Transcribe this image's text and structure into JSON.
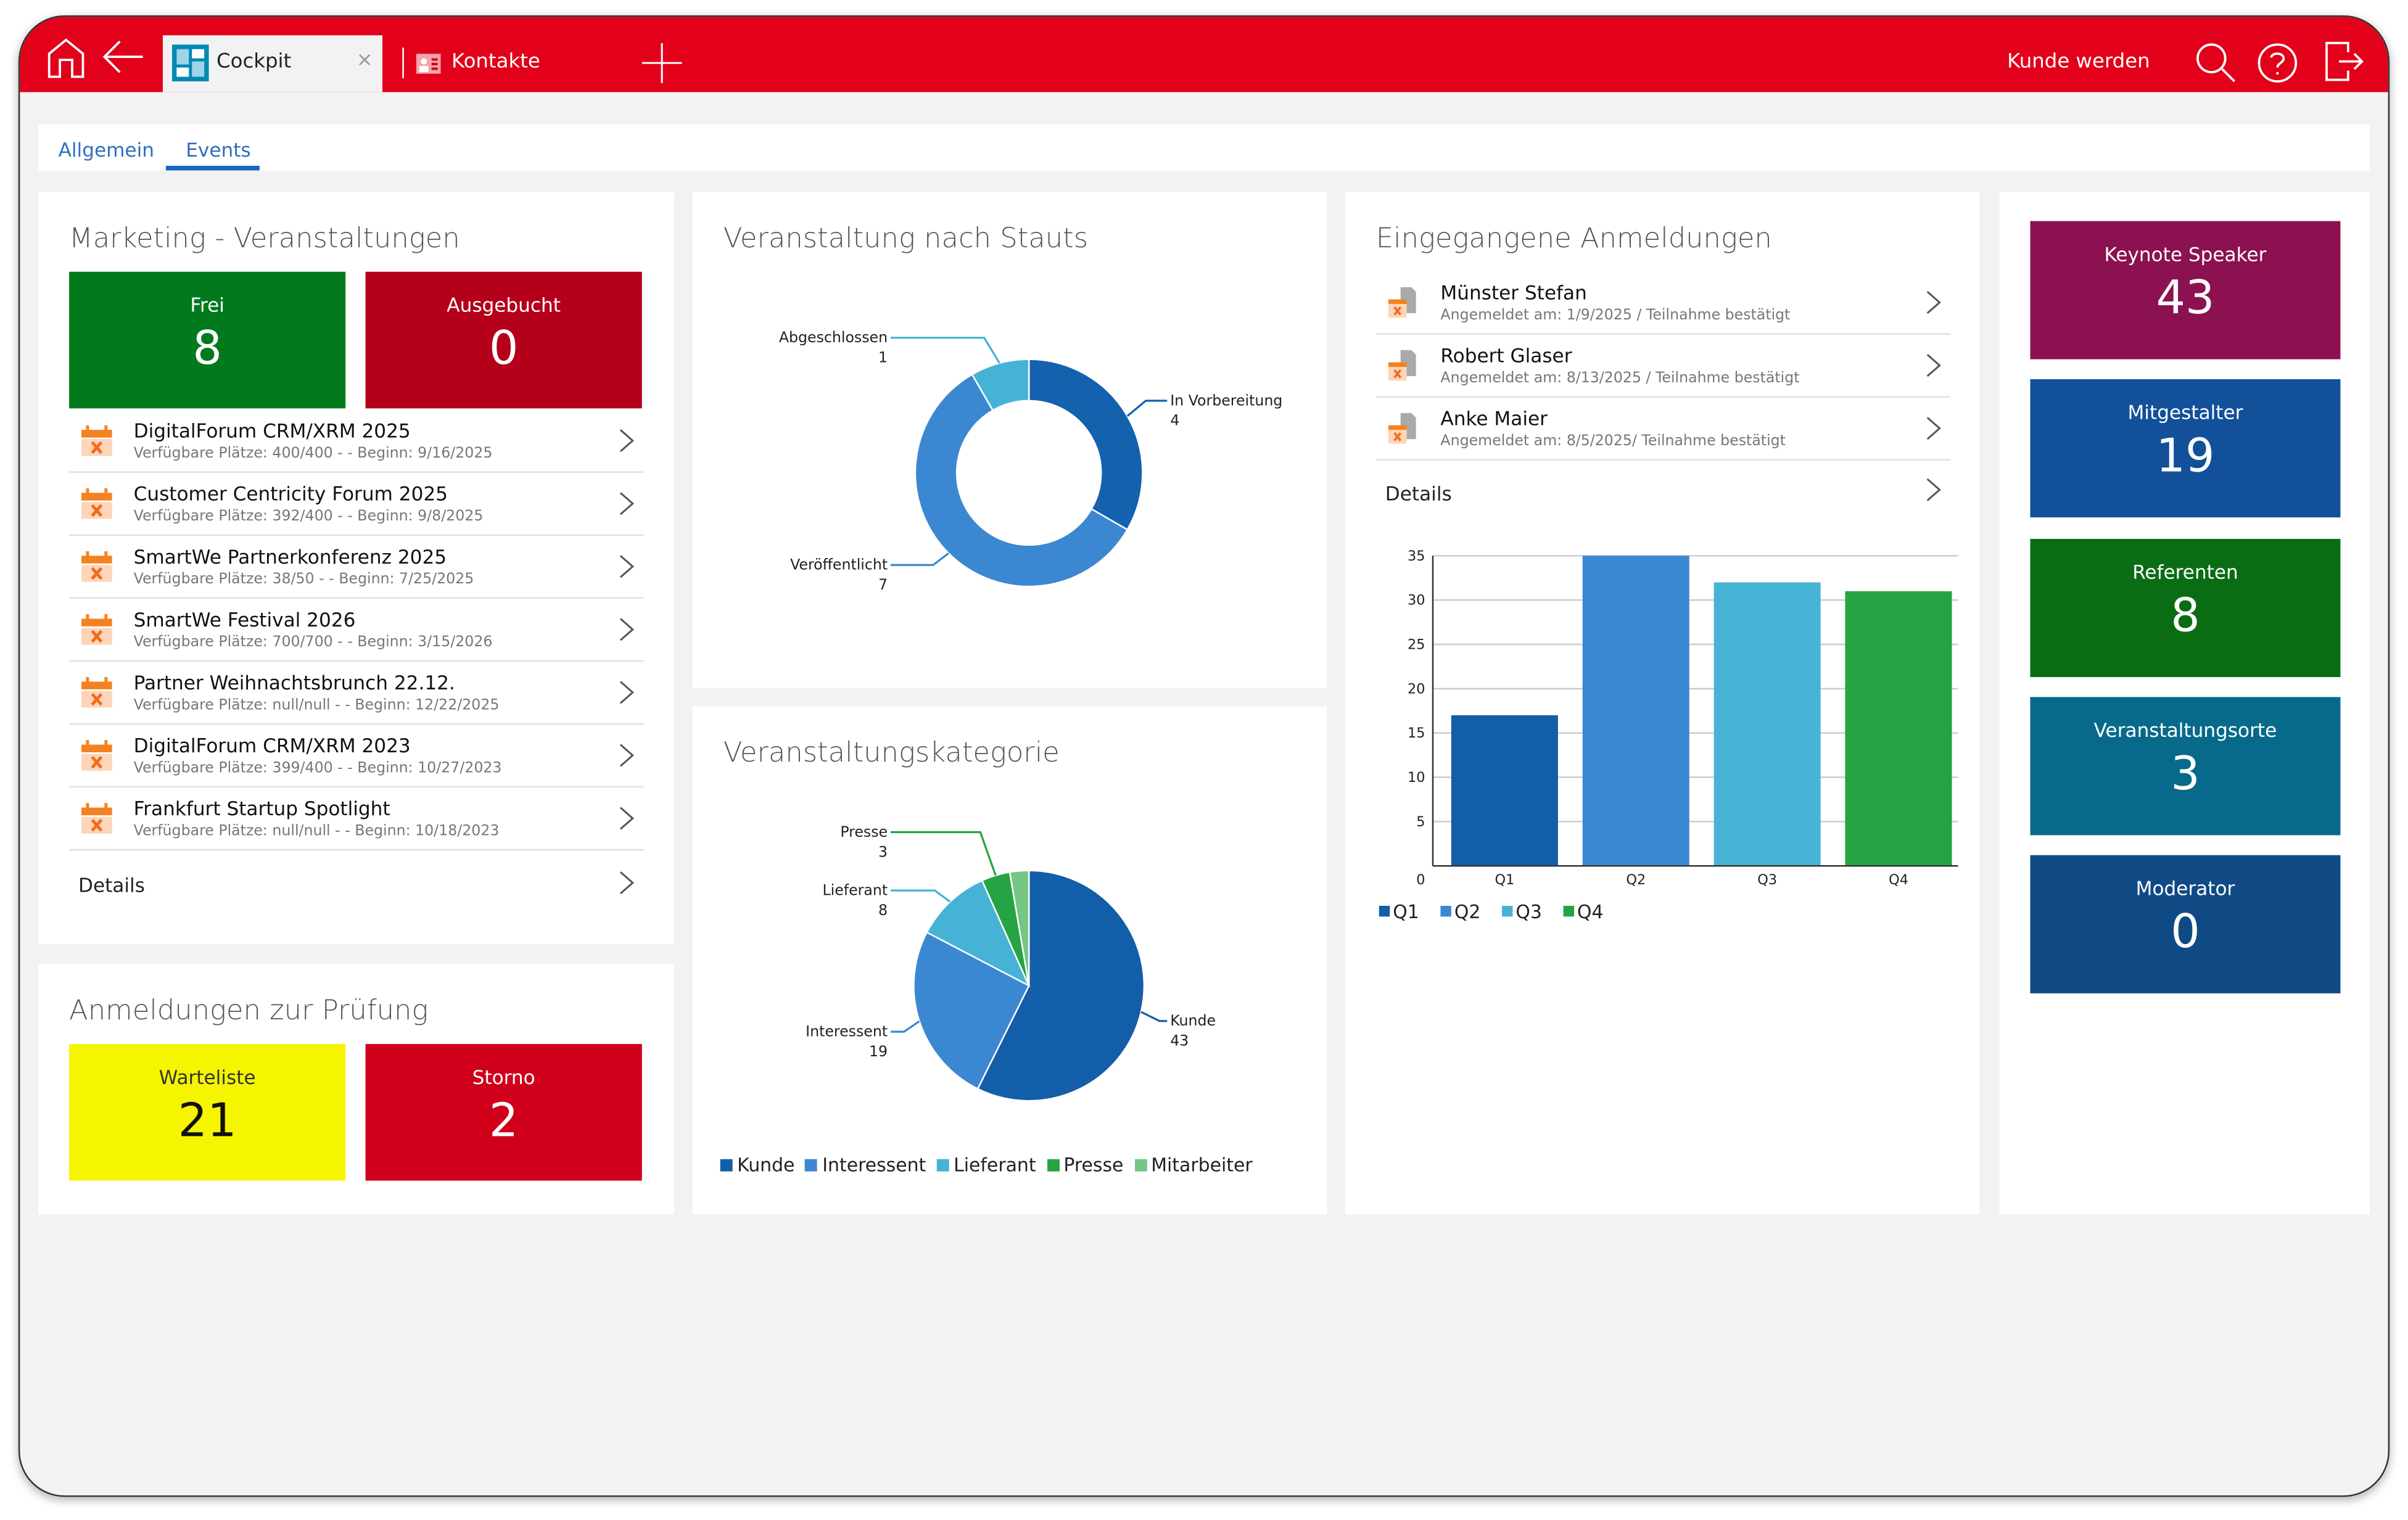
{
  "header": {
    "tabs": [
      {
        "label": "Cockpit",
        "active": true
      },
      {
        "label": "Kontakte",
        "active": false
      }
    ],
    "right_link": "Kunde werden",
    "close_glyph": "×",
    "icons": [
      "home-icon",
      "back-arrow-icon",
      "plus-icon",
      "search-icon",
      "help-icon",
      "logout-icon"
    ],
    "color": "#e2001a"
  },
  "subtabs": [
    {
      "label": "Allgemein"
    },
    {
      "label": "Events",
      "active": true
    }
  ],
  "marketing": {
    "title": "Marketing - Veranstaltungen",
    "tiles": [
      {
        "label": "Frei",
        "value": "8",
        "color": "#007a1c"
      },
      {
        "label": "Ausgebucht",
        "value": "0",
        "color": "#b4001a"
      }
    ],
    "events": [
      {
        "title": "DigitalForum CRM/XRM 2025",
        "sub": "Verfügbare Plätze: 400/400 - - Beginn: 9/16/2025"
      },
      {
        "title": "Customer Centricity Forum 2025",
        "sub": "Verfügbare Plätze: 392/400 - - Beginn: 9/8/2025"
      },
      {
        "title": "SmartWe Partnerkonferenz 2025",
        "sub": "Verfügbare Plätze: 38/50 - - Beginn: 7/25/2025"
      },
      {
        "title": "SmartWe Festival 2026",
        "sub": "Verfügbare Plätze: 700/700 - - Beginn: 3/15/2026"
      },
      {
        "title": "Partner Weihnachtsbrunch 22.12.",
        "sub": "Verfügbare Plätze: null/null - - Beginn: 12/22/2025"
      },
      {
        "title": "DigitalForum CRM/XRM 2023",
        "sub": "Verfügbare Plätze: 399/400 - - Beginn: 10/27/2023"
      },
      {
        "title": "Frankfurt Startup Spotlight",
        "sub": "Verfügbare Plätze: null/null - - Beginn: 10/18/2023"
      }
    ],
    "details": "Details"
  },
  "pruefung": {
    "title": "Anmeldungen zur Prüfung",
    "tiles": [
      {
        "label": "Warteliste",
        "value": "21",
        "color": "#f5f500"
      },
      {
        "label": "Storno",
        "value": "2",
        "color": "#d0001a"
      }
    ]
  },
  "anmeldungen": {
    "title": "Eingegangene Anmeldungen",
    "items": [
      {
        "name": "Münster Stefan",
        "sub": "Angemeldet am: 1/9/2025 / Teilnahme bestätigt"
      },
      {
        "name": "Robert Glaser",
        "sub": "Angemeldet am: 8/13/2025 / Teilnahme bestätigt"
      },
      {
        "name": "Anke Maier",
        "sub": "Angemeldet am: 8/5/2025/ Teilnahme bestätigt"
      }
    ],
    "details": "Details"
  },
  "speakers": [
    {
      "label": "Keynote Speaker",
      "value": "43",
      "color": "#8b1150"
    },
    {
      "label": "Mitgestalter",
      "value": "19",
      "color": "#12509a"
    },
    {
      "label": "Referenten",
      "value": "8",
      "color": "#0a6d14"
    },
    {
      "label": "Veranstaltungsorte",
      "value": "3",
      "color": "#086a8a"
    },
    {
      "label": "Moderator",
      "value": "0",
      "color": "#0f4a85"
    }
  ],
  "chart_data": [
    {
      "type": "pie",
      "variant": "donut",
      "title": "Veranstaltung nach Stauts",
      "categories": [
        "In Vorbereitung",
        "Veröffentlicht",
        "Abgeschlossen"
      ],
      "values": [
        4,
        7,
        1
      ],
      "colors": [
        "#1461ad",
        "#3c87d1",
        "#46b3d6"
      ]
    },
    {
      "type": "pie",
      "title": "Veranstaltungskategorie",
      "categories": [
        "Kunde",
        "Interessent",
        "Lieferant",
        "Presse",
        "Mitarbeiter"
      ],
      "values": [
        43,
        19,
        8,
        3,
        2
      ],
      "labeled": [
        true,
        true,
        true,
        true,
        false
      ],
      "colors": [
        "#135ea8",
        "#3c87d1",
        "#46b3d6",
        "#26a343",
        "#75c585"
      ],
      "legend": "bottom"
    },
    {
      "type": "bar",
      "categories": [
        "Q1",
        "Q2",
        "Q3",
        "Q4"
      ],
      "values": [
        17,
        35,
        32,
        31
      ],
      "colors": [
        "#135ea8",
        "#3c87d1",
        "#46b3d6",
        "#26a343"
      ],
      "ylim": [
        0,
        35
      ],
      "yticks": [
        0,
        5,
        10,
        15,
        20,
        25,
        30,
        35
      ],
      "grid": true,
      "legend": "bottom-left"
    }
  ]
}
